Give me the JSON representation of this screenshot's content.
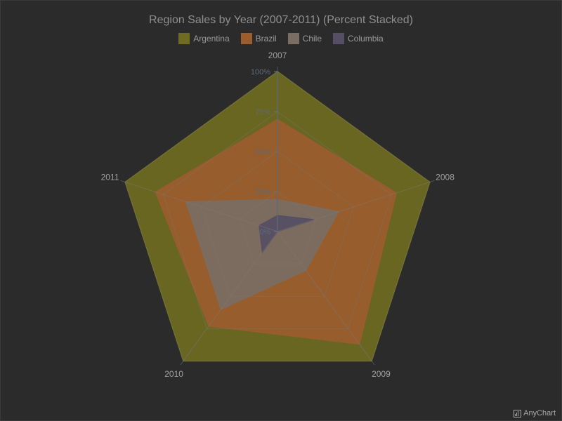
{
  "chart_data": {
    "type": "radar",
    "title": "Region Sales by Year (2007-2011) (Percent Stacked)",
    "categories": [
      "2007",
      "2008",
      "2009",
      "2010",
      "2011"
    ],
    "stacking": "percent",
    "yTicks": [
      "0%",
      "25%",
      "50%",
      "75%",
      "100%"
    ],
    "ylim": [
      0,
      100
    ],
    "legend_position": "top",
    "series": [
      {
        "name": "Argentina",
        "color": "#6f6b22",
        "cumulative": [
          100,
          100,
          100,
          100,
          100
        ]
      },
      {
        "name": "Brazil",
        "color": "#9b5c2e",
        "cumulative": [
          70,
          78,
          87,
          73,
          80
        ]
      },
      {
        "name": "Chile",
        "color": "#7a6e64",
        "cumulative": [
          20,
          40,
          30,
          60,
          60
        ]
      },
      {
        "name": "Columbia",
        "color": "#554e64",
        "cumulative": [
          10,
          24,
          0,
          16,
          12
        ]
      }
    ]
  },
  "credit": "AnyChart"
}
